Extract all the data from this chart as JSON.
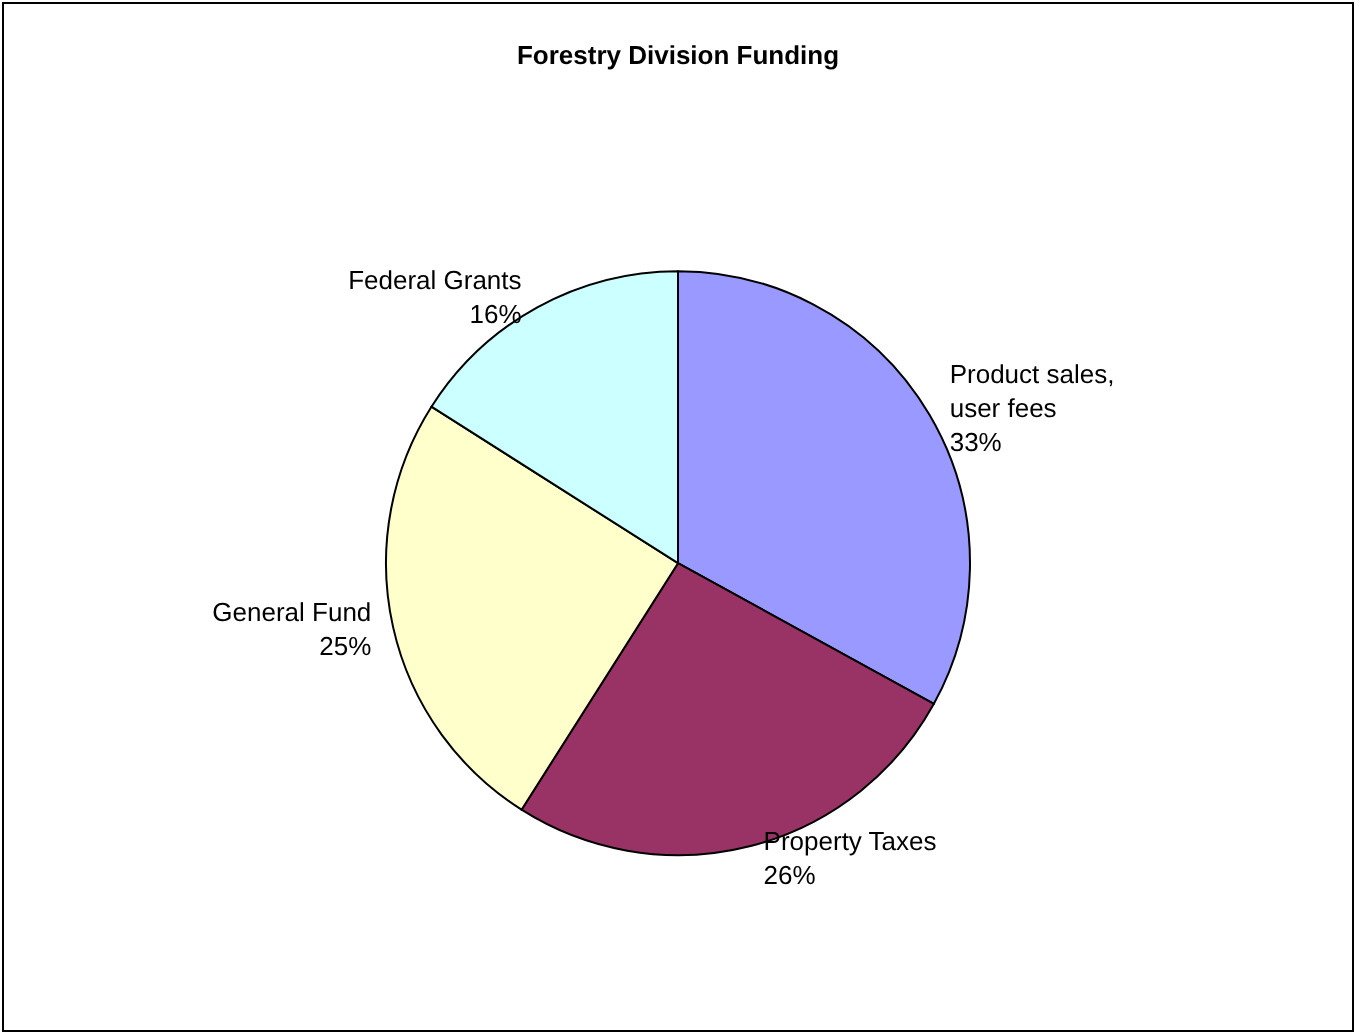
{
  "chart_data": {
    "type": "pie",
    "title": "Forestry Division Funding",
    "categories": [
      "Product sales, user fees",
      "Property Taxes",
      "General Fund",
      "Federal Grants"
    ],
    "values": [
      33,
      26,
      25,
      16
    ],
    "value_labels": [
      "33%",
      "26%",
      "25%",
      "16%"
    ],
    "colors": [
      "#9999ff",
      "#993366",
      "#ffffcc",
      "#ccffff"
    ],
    "legend": false
  }
}
